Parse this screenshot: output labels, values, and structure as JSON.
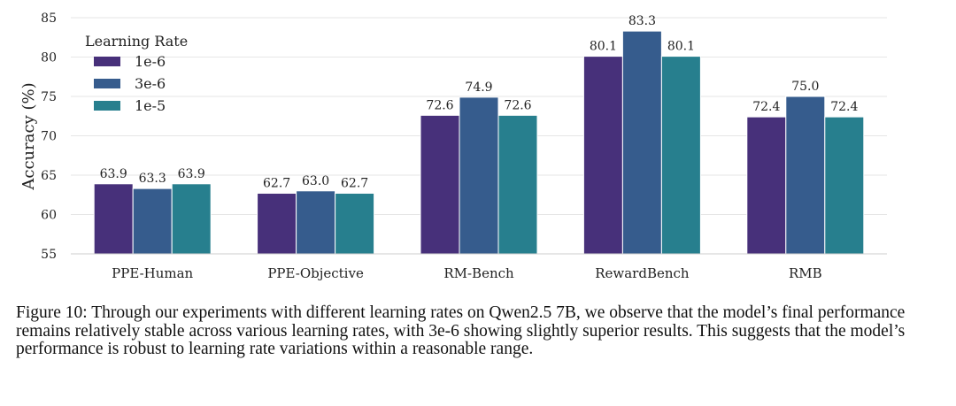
{
  "chart_data": {
    "type": "bar",
    "title": "",
    "xlabel": "",
    "ylabel": "Accuracy (%)",
    "ylim": [
      55,
      85
    ],
    "yticks": [
      55,
      60,
      65,
      70,
      75,
      80,
      85
    ],
    "grid": true,
    "legend": {
      "title": "Learning Rate",
      "position": "top-left"
    },
    "categories": [
      "PPE-Human",
      "PPE-Objective",
      "RM-Bench",
      "RewardBench",
      "RMB"
    ],
    "series": [
      {
        "name": "1e-6",
        "color": "#47307a",
        "values": [
          63.9,
          62.7,
          72.6,
          80.1,
          72.4
        ],
        "labels": [
          "63.9",
          "62.7",
          "72.6",
          "80.1",
          "72.4"
        ]
      },
      {
        "name": "3e-6",
        "color": "#365c8d",
        "values": [
          63.3,
          63.0,
          74.9,
          83.3,
          75.0
        ],
        "labels": [
          "63.3",
          "63.0",
          "74.9",
          "83.3",
          "75.0"
        ]
      },
      {
        "name": "1e-5",
        "color": "#277f8e",
        "values": [
          63.9,
          62.7,
          72.6,
          80.1,
          72.4
        ],
        "labels": [
          "63.9",
          "62.7",
          "72.6",
          "80.1",
          "72.4"
        ]
      }
    ]
  },
  "caption": {
    "text": "Figure 10: Through our experiments with different learning rates on Qwen2.5 7B, we observe that the model’s final performance remains relatively stable across various learning rates, with 3e-6 showing slightly superior results. This suggests that the model’s performance is robust to learning rate variations within a reasonable range."
  }
}
